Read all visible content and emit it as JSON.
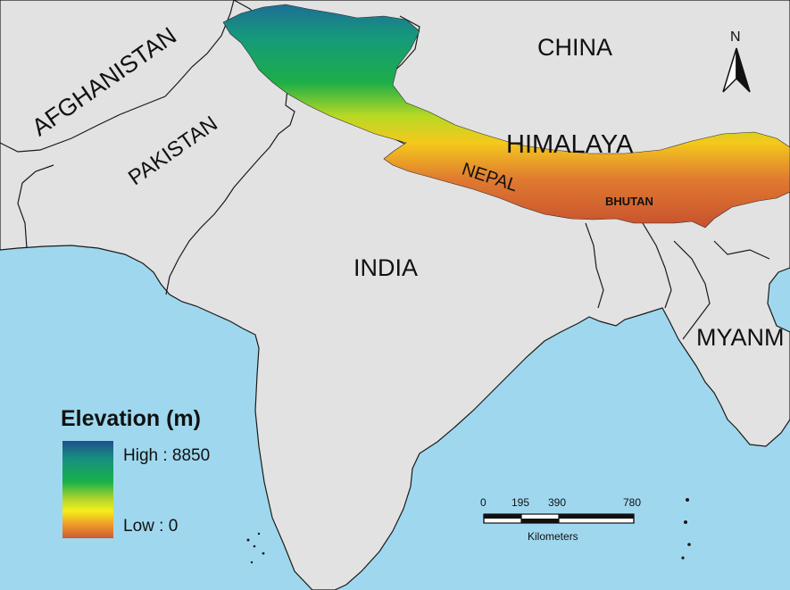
{
  "map": {
    "countries": {
      "afghanistan": "AFGHANISTAN",
      "pakistan": "PAKISTAN",
      "india": "INDIA",
      "china": "CHINA",
      "nepal": "NEPAL",
      "bhutan": "BHUTAN",
      "myanmar": "MYANM"
    },
    "region_label": "HIMALAYA",
    "north_arrow_label": "N",
    "colors": {
      "sea": "#9fd8ee",
      "land": "#e2e2e2",
      "border": "#1a1a1a",
      "elev_high": "#1e4f8f",
      "elev_mid": "#19b04a",
      "elev_yellow": "#f6ee1a",
      "elev_low": "#d0663a"
    }
  },
  "legend": {
    "title": "Elevation (m)",
    "high_label": "High : 8850",
    "low_label": "Low : 0"
  },
  "scalebar": {
    "ticks": [
      "0",
      "195",
      "390",
      "780"
    ],
    "unit": "Kilometers"
  }
}
